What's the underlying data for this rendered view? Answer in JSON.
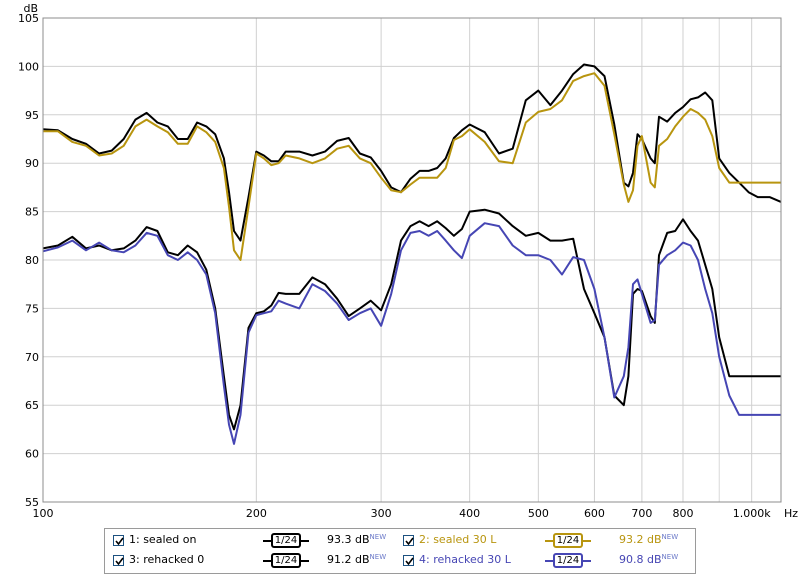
{
  "chart_data": {
    "type": "line",
    "y_unit_label": "dB",
    "x_unit_label": "Hz",
    "x_scale": "log",
    "xlim": [
      100,
      1100
    ],
    "ylim": [
      55,
      105
    ],
    "grid": true,
    "x_tick_labels": [
      "100",
      "200",
      "300",
      "400",
      "500",
      "600",
      "700",
      "800",
      "1.000k"
    ],
    "x_tick_values": [
      100,
      200,
      300,
      400,
      500,
      600,
      700,
      800,
      1000
    ],
    "y_tick_values": [
      55,
      60,
      65,
      70,
      75,
      80,
      85,
      90,
      95,
      100,
      105
    ],
    "series": [
      {
        "name": "1: sealed on",
        "color": "#000000",
        "x": [
          100,
          105,
          110,
          115,
          120,
          125,
          130,
          135,
          140,
          145,
          150,
          155,
          160,
          165,
          170,
          175,
          180,
          183,
          186,
          190,
          195,
          200,
          205,
          210,
          215,
          220,
          230,
          240,
          250,
          260,
          270,
          280,
          290,
          300,
          310,
          320,
          330,
          340,
          350,
          360,
          370,
          380,
          390,
          400,
          420,
          440,
          460,
          480,
          500,
          520,
          540,
          560,
          580,
          600,
          620,
          640,
          660,
          670,
          680,
          690,
          700,
          720,
          730,
          740,
          760,
          780,
          800,
          820,
          840,
          860,
          880,
          900,
          930,
          960,
          990,
          1020,
          1060,
          1100
        ],
        "y": [
          93.5,
          93.4,
          92.5,
          92.0,
          91.0,
          91.3,
          92.5,
          94.5,
          95.2,
          94.2,
          93.8,
          92.5,
          92.5,
          94.2,
          93.8,
          93.0,
          90.5,
          87.0,
          83.0,
          82.0,
          86.5,
          91.2,
          90.8,
          90.2,
          90.2,
          91.2,
          91.2,
          90.8,
          91.2,
          92.3,
          92.6,
          91.0,
          90.6,
          89.2,
          87.5,
          87.0,
          88.4,
          89.2,
          89.2,
          89.5,
          90.5,
          92.6,
          93.4,
          94.0,
          93.2,
          91.0,
          91.5,
          96.5,
          97.5,
          96.0,
          97.5,
          99.2,
          100.2,
          100.0,
          99.0,
          94.0,
          88.0,
          87.6,
          89.0,
          93.0,
          92.5,
          90.5,
          90.0,
          94.8,
          94.3,
          95.2,
          95.8,
          96.6,
          96.8,
          97.3,
          96.5,
          90.5,
          89.0,
          88.0,
          87.0,
          86.5,
          86.5,
          86.0
        ]
      },
      {
        "name": "2: sealed 30 L",
        "color": "#b8950f",
        "x": [
          100,
          105,
          110,
          115,
          120,
          125,
          130,
          135,
          140,
          145,
          150,
          155,
          160,
          165,
          170,
          175,
          180,
          183,
          186,
          190,
          195,
          200,
          205,
          210,
          215,
          220,
          230,
          240,
          250,
          260,
          270,
          280,
          290,
          300,
          310,
          320,
          330,
          340,
          350,
          360,
          370,
          380,
          390,
          400,
          420,
          440,
          460,
          480,
          500,
          520,
          540,
          560,
          580,
          600,
          620,
          640,
          660,
          670,
          680,
          690,
          700,
          720,
          730,
          740,
          760,
          780,
          800,
          820,
          840,
          860,
          880,
          900,
          930,
          960,
          990,
          1020,
          1060,
          1100
        ],
        "y": [
          93.3,
          93.3,
          92.2,
          91.8,
          90.8,
          91.0,
          91.8,
          93.8,
          94.5,
          93.8,
          93.2,
          92.0,
          92.0,
          93.8,
          93.2,
          92.2,
          89.5,
          85.5,
          81.0,
          80.0,
          85.5,
          91.0,
          90.5,
          89.8,
          90.0,
          90.8,
          90.5,
          90.0,
          90.5,
          91.5,
          91.8,
          90.5,
          90.0,
          88.5,
          87.2,
          87.0,
          87.8,
          88.5,
          88.5,
          88.5,
          89.5,
          92.4,
          92.8,
          93.5,
          92.2,
          90.2,
          90.0,
          94.2,
          95.3,
          95.6,
          96.5,
          98.5,
          99.0,
          99.3,
          98.0,
          93.0,
          87.8,
          86.0,
          87.2,
          91.8,
          92.8,
          88.0,
          87.5,
          91.8,
          92.5,
          93.8,
          94.8,
          95.6,
          95.2,
          94.5,
          92.8,
          89.5,
          88.0,
          88.0,
          88.0,
          88.0,
          88.0,
          88.0
        ]
      },
      {
        "name": "3: rehacked 0",
        "color": "#000000",
        "x": [
          100,
          105,
          110,
          115,
          120,
          125,
          130,
          135,
          140,
          145,
          150,
          155,
          160,
          165,
          170,
          175,
          180,
          183,
          186,
          190,
          195,
          200,
          205,
          210,
          215,
          220,
          230,
          240,
          250,
          260,
          270,
          280,
          290,
          300,
          310,
          320,
          330,
          340,
          350,
          360,
          370,
          380,
          390,
          400,
          420,
          440,
          460,
          480,
          500,
          520,
          540,
          560,
          580,
          600,
          620,
          640,
          660,
          670,
          680,
          690,
          700,
          720,
          730,
          740,
          760,
          780,
          800,
          820,
          840,
          860,
          880,
          900,
          930,
          960,
          990,
          1020,
          1060,
          1100
        ],
        "y": [
          81.2,
          81.5,
          82.4,
          81.2,
          81.5,
          81.0,
          81.2,
          82.0,
          83.4,
          83.0,
          80.8,
          80.5,
          81.5,
          80.8,
          79.0,
          75.0,
          68.0,
          64.0,
          62.5,
          65.0,
          73.0,
          74.5,
          74.7,
          75.3,
          76.6,
          76.5,
          76.5,
          78.2,
          77.5,
          76.0,
          74.2,
          75.0,
          75.8,
          74.8,
          77.5,
          82.0,
          83.5,
          84.0,
          83.5,
          84.0,
          83.3,
          82.5,
          83.2,
          85.0,
          85.2,
          84.8,
          83.5,
          82.5,
          82.8,
          82.0,
          82.0,
          82.2,
          77.0,
          74.5,
          72.0,
          66.0,
          65.0,
          68.0,
          76.5,
          77.0,
          76.8,
          74.2,
          73.5,
          80.5,
          82.8,
          83.0,
          84.2,
          83.0,
          82.0,
          79.5,
          77.0,
          72.0,
          68.0,
          68.0,
          68.0,
          68.0,
          68.0,
          68.0
        ]
      },
      {
        "name": "4: rehacked 30 L",
        "color": "#4646b4",
        "x": [
          100,
          105,
          110,
          115,
          120,
          125,
          130,
          135,
          140,
          145,
          150,
          155,
          160,
          165,
          170,
          175,
          180,
          183,
          186,
          190,
          195,
          200,
          205,
          210,
          215,
          220,
          230,
          240,
          250,
          260,
          270,
          280,
          290,
          300,
          310,
          320,
          330,
          340,
          350,
          360,
          370,
          380,
          390,
          400,
          420,
          440,
          460,
          480,
          500,
          520,
          540,
          560,
          580,
          600,
          620,
          640,
          660,
          670,
          680,
          690,
          700,
          720,
          730,
          740,
          760,
          780,
          800,
          820,
          840,
          860,
          880,
          900,
          930,
          960,
          990,
          1020,
          1060,
          1100
        ],
        "y": [
          80.9,
          81.3,
          82.0,
          81.0,
          81.8,
          81.0,
          80.8,
          81.5,
          82.8,
          82.5,
          80.5,
          80.0,
          80.8,
          80.0,
          78.5,
          74.5,
          67.0,
          63.0,
          61.0,
          64.0,
          72.5,
          74.3,
          74.5,
          74.7,
          75.8,
          75.5,
          75.0,
          77.5,
          76.8,
          75.5,
          73.8,
          74.5,
          75.0,
          73.2,
          76.5,
          81.0,
          82.8,
          83.0,
          82.5,
          83.0,
          82.0,
          81.0,
          80.2,
          82.5,
          83.8,
          83.5,
          81.5,
          80.5,
          80.5,
          80.0,
          78.5,
          80.3,
          80.0,
          77.0,
          72.0,
          65.8,
          68.0,
          71.0,
          77.5,
          78.0,
          76.5,
          73.5,
          73.8,
          79.5,
          80.5,
          81.0,
          81.8,
          81.5,
          80.0,
          77.0,
          74.5,
          70.0,
          66.0,
          64.0,
          64.0,
          64.0,
          64.0,
          64.0
        ]
      }
    ]
  },
  "legend": {
    "row1": {
      "left_label": "1: sealed on",
      "left_smooth": "1/24",
      "left_value": "93.3 dB",
      "left_badge": "NEW",
      "right_label": "2: sealed 30 L",
      "right_smooth": "1/24",
      "right_value": "93.2 dB",
      "right_badge": "NEW"
    },
    "row2": {
      "left_label": "3: rehacked 0",
      "left_smooth": "1/24",
      "left_value": "91.2 dB",
      "left_badge": "NEW",
      "right_label": "4: rehacked 30 L",
      "right_smooth": "1/24",
      "right_value": "90.8 dB",
      "right_badge": "NEW"
    }
  }
}
